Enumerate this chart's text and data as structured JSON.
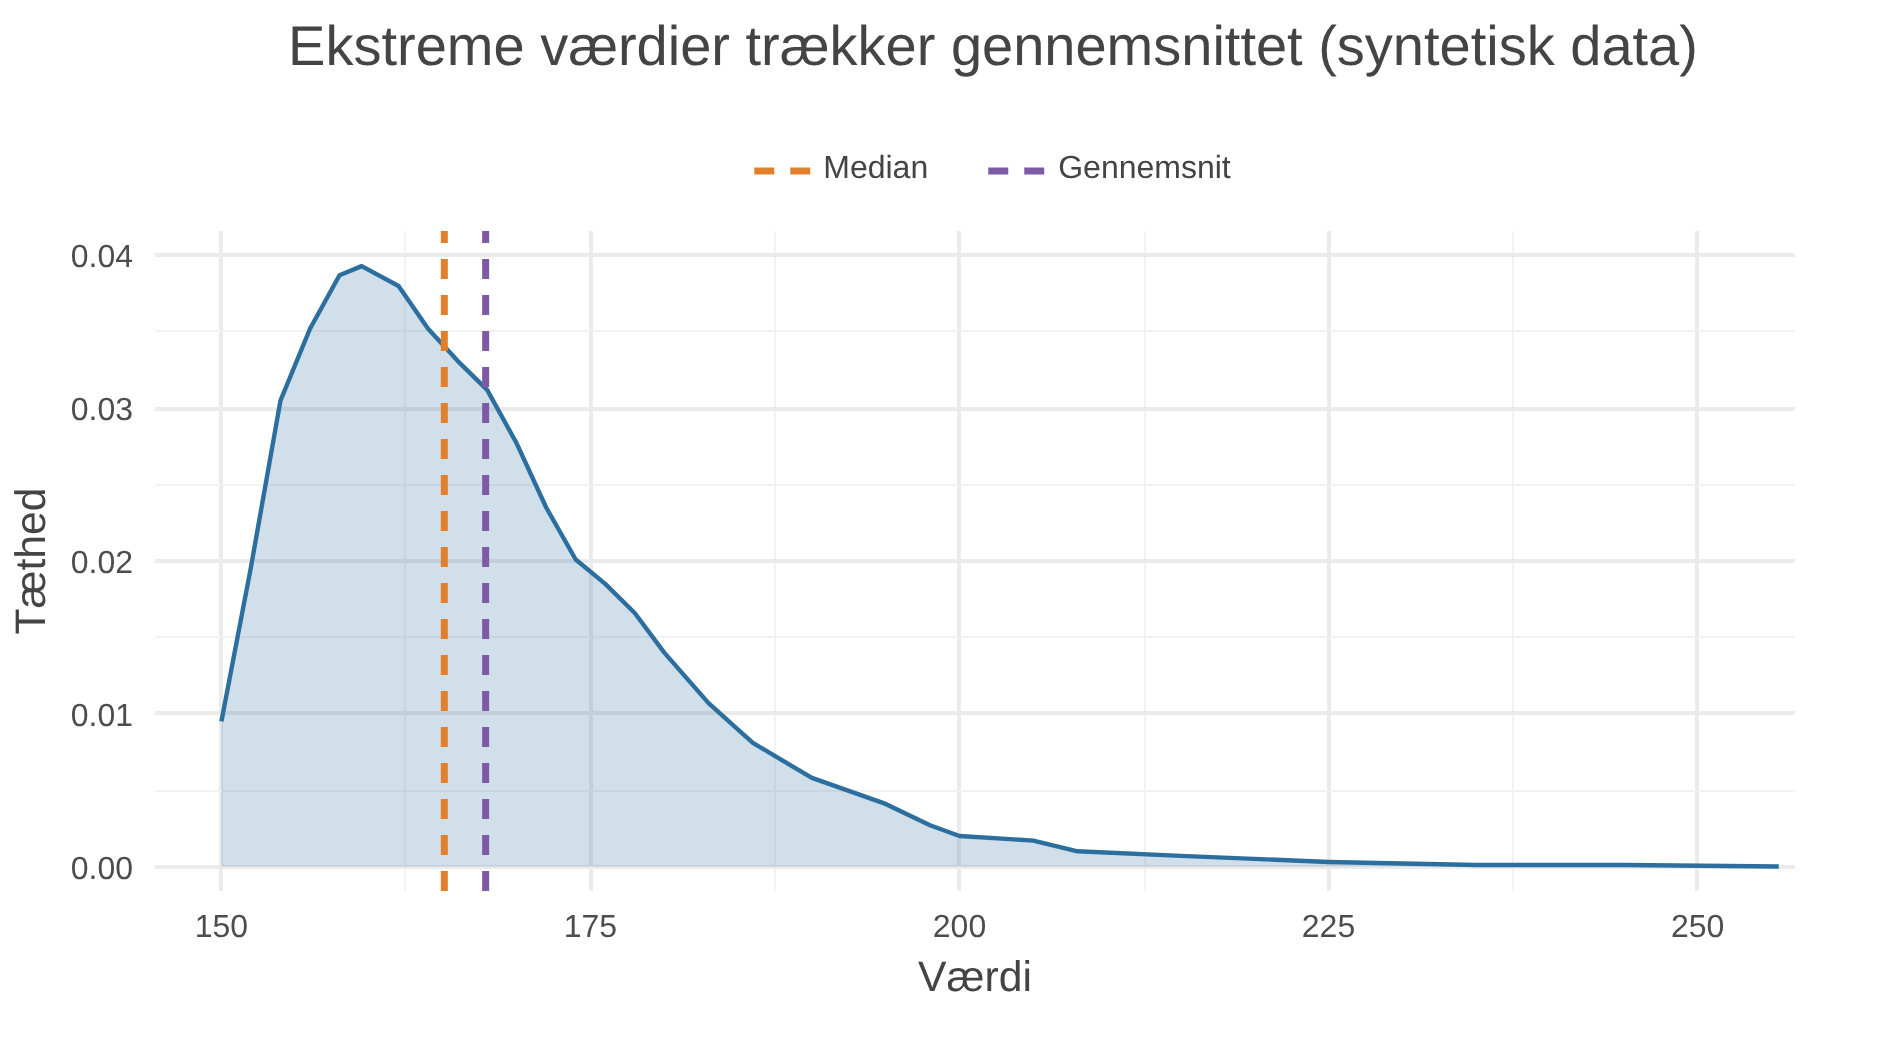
{
  "chart_data": {
    "type": "area",
    "title": "Ekstreme værdier trækker gennemsnittet (syntetisk data)",
    "xlabel": "Værdi",
    "ylabel": "Tæthed",
    "x": [
      150,
      152,
      154,
      156,
      158,
      159.5,
      162,
      164,
      166,
      168,
      170,
      172,
      174,
      176,
      178,
      180,
      183,
      186,
      190,
      195,
      198,
      200,
      205,
      208,
      215,
      225,
      235,
      245,
      255.5
    ],
    "series": [
      {
        "color": "#2c6e9e",
        "values": [
          0.0095,
          0.0196,
          0.0305,
          0.0352,
          0.0387,
          0.0393,
          0.038,
          0.0352,
          0.0331,
          0.0312,
          0.0277,
          0.0235,
          0.0201,
          0.0185,
          0.0166,
          0.014,
          0.0107,
          0.0081,
          0.0058,
          0.0041,
          0.0027,
          0.002,
          0.0017,
          0.001,
          0.0007,
          0.0003,
          0.0001,
          0.0001,
          0.0
        ]
      }
    ],
    "xlim": [
      145.5,
      256.6
    ],
    "ylim": [
      -0.0016,
      0.0416
    ],
    "xticks": [
      150,
      175,
      200,
      225,
      250
    ],
    "yticks": [
      {
        "value": 0,
        "label": "0.00"
      },
      {
        "value": 0.01,
        "label": "0.01"
      },
      {
        "value": 0.02,
        "label": "0.02"
      },
      {
        "value": 0.03,
        "label": "0.03"
      },
      {
        "value": 0.04,
        "label": "0.04"
      }
    ],
    "ref_lines": [
      {
        "axis": "x",
        "value": 165.1,
        "label": "Median",
        "color": "#e0802c",
        "line_style": "dashed"
      },
      {
        "axis": "x",
        "value": 167.9,
        "label": "Gennemsnit",
        "color": "#7e5aa6",
        "line_style": "dashed"
      }
    ],
    "grid": true,
    "legend": "top"
  }
}
